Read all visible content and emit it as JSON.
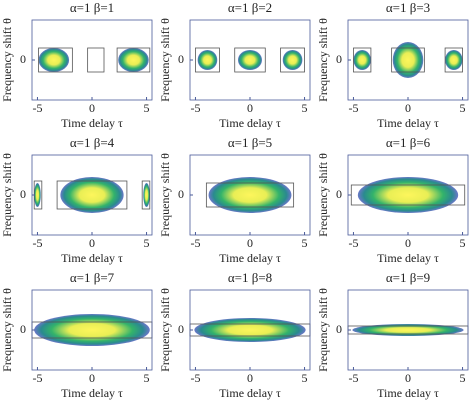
{
  "chart_data": [
    {
      "type": "heatmap",
      "title": "α=1 β=1",
      "xlabel": "Time delay τ",
      "ylabel": "Frequency shift θ",
      "xlim": [
        -5.5,
        5.5
      ],
      "ylim": [
        -1,
        1
      ],
      "xticks": [
        -5,
        0,
        5
      ],
      "yticks": [
        0
      ],
      "boxes": [
        {
          "x0": -4.9,
          "x1": -1.8,
          "h": 0.3
        },
        {
          "x0": -0.4,
          "x1": 1.1,
          "h": 0.3
        },
        {
          "x0": 2.3,
          "x1": 5.3,
          "h": 0.3
        }
      ],
      "blobs": [
        {
          "x": -3.5,
          "w": 1.4,
          "h": 0.3
        },
        {
          "x": 3.8,
          "w": 1.4,
          "h": 0.3
        }
      ]
    },
    {
      "type": "heatmap",
      "title": "α=1 β=2",
      "xlabel": "Time delay τ",
      "ylabel": "Frequency shift θ",
      "xlim": [
        -5.5,
        5.5
      ],
      "ylim": [
        -1,
        1
      ],
      "xticks": [
        -5,
        0,
        5
      ],
      "yticks": [
        0
      ],
      "boxes": [
        {
          "x0": -5,
          "x1": -2.8,
          "h": 0.3
        },
        {
          "x0": -1.4,
          "x1": 1.4,
          "h": 0.3
        },
        {
          "x0": 2.8,
          "x1": 5,
          "h": 0.3
        }
      ],
      "blobs": [
        {
          "x": -3.9,
          "w": 0.9,
          "h": 0.25
        },
        {
          "x": 0,
          "w": 1.1,
          "h": 0.25
        },
        {
          "x": 3.9,
          "w": 0.9,
          "h": 0.25
        }
      ]
    },
    {
      "type": "heatmap",
      "title": "α=1 β=3",
      "xlabel": "Time delay τ",
      "ylabel": "Frequency shift θ",
      "xlim": [
        -5.5,
        5.5
      ],
      "ylim": [
        -1,
        1
      ],
      "xticks": [
        -5,
        0,
        5
      ],
      "yticks": [
        0
      ],
      "boxes": [
        {
          "x0": -5,
          "x1": -3.4,
          "h": 0.3
        },
        {
          "x0": -1.5,
          "x1": 1.5,
          "h": 0.3
        },
        {
          "x0": 3.4,
          "x1": 5,
          "h": 0.3
        }
      ],
      "blobs": [
        {
          "x": -4.2,
          "w": 0.8,
          "h": 0.25
        },
        {
          "x": 0,
          "w": 1.4,
          "h": 0.45
        },
        {
          "x": 4.2,
          "w": 0.8,
          "h": 0.25
        }
      ]
    },
    {
      "type": "heatmap",
      "title": "α=1 β=4",
      "xlabel": "Time delay τ",
      "ylabel": "Frequency shift θ",
      "xlim": [
        -5.5,
        5.5
      ],
      "ylim": [
        -1,
        1
      ],
      "xticks": [
        -5,
        0,
        5
      ],
      "yticks": [
        0
      ],
      "boxes": [
        {
          "x0": -5.3,
          "x1": -4.6,
          "h": 0.35
        },
        {
          "x0": -3.2,
          "x1": 3.2,
          "h": 0.35
        },
        {
          "x0": 4.6,
          "x1": 5.3,
          "h": 0.35
        }
      ],
      "blobs": [
        {
          "x": -5,
          "w": 0.3,
          "h": 0.3
        },
        {
          "x": 0,
          "w": 2.9,
          "h": 0.45
        },
        {
          "x": 5,
          "w": 0.3,
          "h": 0.3
        }
      ]
    },
    {
      "type": "heatmap",
      "title": "α=1 β=5",
      "xlabel": "Time delay τ",
      "ylabel": "Frequency shift θ",
      "xlim": [
        -5.5,
        5.5
      ],
      "ylim": [
        -1,
        1
      ],
      "xticks": [
        -5,
        0,
        5
      ],
      "yticks": [
        0
      ],
      "boxes": [
        {
          "x0": -4,
          "x1": 4,
          "h": 0.3
        }
      ],
      "blobs": [
        {
          "x": 0,
          "w": 3.8,
          "h": 0.45
        }
      ]
    },
    {
      "type": "heatmap",
      "title": "α=1 β=6",
      "xlabel": "Time delay τ",
      "ylabel": "Frequency shift θ",
      "xlim": [
        -5.5,
        5.5
      ],
      "ylim": [
        -1,
        1
      ],
      "xticks": [
        -5,
        0,
        5
      ],
      "yticks": [
        0
      ],
      "boxes": [
        {
          "x0": -5.2,
          "x1": 5.2,
          "h": 0.25
        }
      ],
      "blobs": [
        {
          "x": 0,
          "w": 4.6,
          "h": 0.45
        }
      ]
    },
    {
      "type": "heatmap",
      "title": "α=1 β=7",
      "xlabel": "Time delay τ",
      "ylabel": "Frequency shift θ",
      "xlim": [
        -5.5,
        5.5
      ],
      "ylim": [
        -1,
        1
      ],
      "xticks": [
        -5,
        0,
        5
      ],
      "yticks": [
        0
      ],
      "boxes": [
        {
          "x0": -5.5,
          "x1": 5.5,
          "h": 0.2
        }
      ],
      "blobs": [
        {
          "x": 0,
          "w": 5.3,
          "h": 0.4
        }
      ]
    },
    {
      "type": "heatmap",
      "title": "α=1 β=8",
      "xlabel": "Time delay τ",
      "ylabel": "Frequency shift θ",
      "xlim": [
        -5.5,
        5.5
      ],
      "ylim": [
        -1,
        1
      ],
      "xticks": [
        -5,
        0,
        5
      ],
      "yticks": [
        0
      ],
      "boxes": [
        {
          "x0": -5.5,
          "x1": 5.5,
          "h": 0.15
        }
      ],
      "blobs": [
        {
          "x": 0,
          "w": 5.1,
          "h": 0.3
        }
      ]
    },
    {
      "type": "heatmap",
      "title": "α=1 β=9",
      "xlabel": "Time delay τ",
      "ylabel": "Frequency shift θ",
      "xlim": [
        -5.5,
        5.5
      ],
      "ylim": [
        -1,
        1
      ],
      "xticks": [
        -5,
        0,
        5
      ],
      "yticks": [
        0
      ],
      "boxes": [
        {
          "x0": -5.5,
          "x1": 5.5,
          "h": 0.1
        }
      ],
      "blobs": [
        {
          "x": 0,
          "w": 5.1,
          "h": 0.15
        }
      ]
    }
  ]
}
